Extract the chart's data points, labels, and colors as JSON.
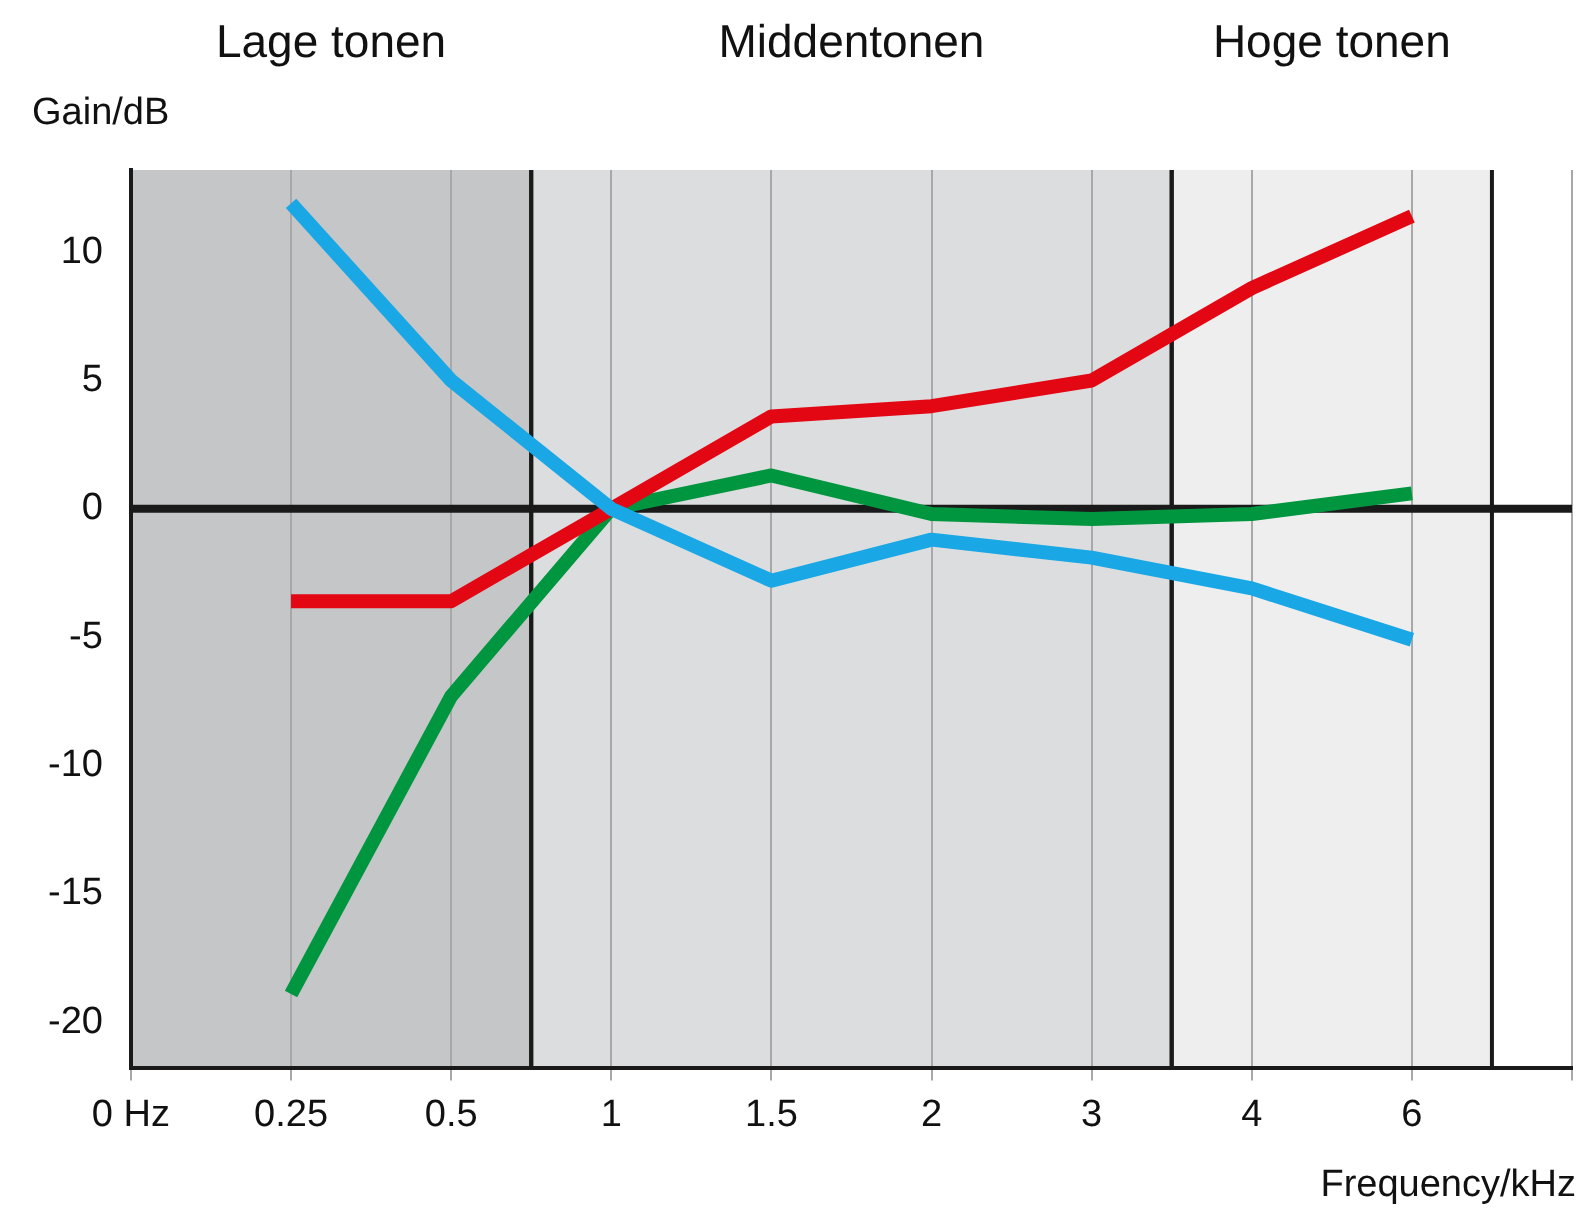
{
  "chart_data": {
    "type": "line",
    "ylabel": "Gain/dB",
    "xlabel": "Frequency/kHz",
    "categories": [
      "0 Hz",
      "0.25",
      "0.5",
      "1",
      "1.5",
      "2",
      "3",
      "4",
      "6",
      null
    ],
    "series": [
      {
        "color": "#1aa7e6",
        "values": [
          null,
          11.9,
          5.0,
          0,
          -2.8,
          -1.2,
          -1.9,
          -3.1,
          -5.1,
          null
        ]
      },
      {
        "color": "#e30613",
        "values": [
          null,
          -3.6,
          -3.6,
          0,
          3.6,
          4.0,
          5.0,
          8.6,
          11.4,
          null
        ]
      },
      {
        "color": "#00963f",
        "values": [
          null,
          -18.9,
          -7.3,
          0,
          1.3,
          -0.2,
          -0.4,
          -0.2,
          0.6,
          null
        ]
      }
    ],
    "ylim": [
      -21.8,
      13.2
    ],
    "yticks": [
      -20,
      -15,
      -10,
      -5,
      0,
      5,
      10
    ],
    "bands": [
      {
        "axis": "x",
        "from": "0 Hz",
        "to": "0.5",
        "label": "Lage tonen",
        "color": "#c4c6c8"
      },
      {
        "axis": "x",
        "from": "1",
        "to": "3",
        "label": "Middentonen",
        "color": "#dcddde"
      },
      {
        "axis": "x",
        "from": "4",
        "to": "6",
        "label": "Hoge tonen",
        "color": "#eeeeef"
      }
    ],
    "ref_lines": [
      {
        "axis": "y",
        "value": 0,
        "color": "#1a1a1a"
      }
    ],
    "grid": "x",
    "legend": false,
    "marker": "none",
    "line_style": "solid"
  }
}
